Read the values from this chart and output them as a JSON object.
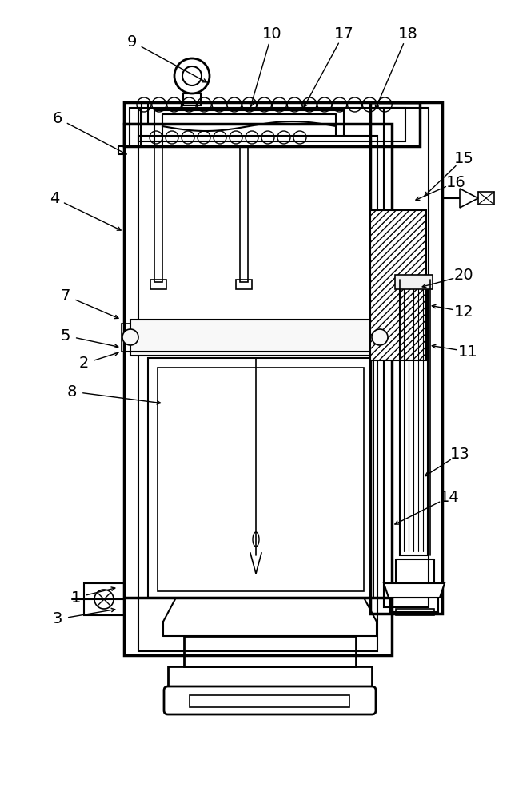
{
  "bg_color": "#ffffff",
  "lc": "#000000",
  "figsize": [
    6.54,
    10.0
  ],
  "dpi": 100,
  "annotations": [
    [
      "9",
      165,
      52,
      262,
      105
    ],
    [
      "10",
      340,
      42,
      312,
      138
    ],
    [
      "17",
      430,
      42,
      378,
      138
    ],
    [
      "18",
      510,
      42,
      468,
      140
    ],
    [
      "6",
      72,
      148,
      162,
      195
    ],
    [
      "4",
      68,
      248,
      155,
      290
    ],
    [
      "7",
      82,
      370,
      152,
      400
    ],
    [
      "5",
      82,
      420,
      152,
      435
    ],
    [
      "2",
      105,
      455,
      152,
      440
    ],
    [
      "8",
      90,
      490,
      205,
      505
    ],
    [
      "1",
      95,
      748,
      148,
      735
    ],
    [
      "3",
      72,
      775,
      148,
      762
    ],
    [
      "15",
      580,
      198,
      528,
      248
    ],
    [
      "16",
      570,
      228,
      516,
      252
    ],
    [
      "11",
      585,
      440,
      536,
      432
    ],
    [
      "12",
      580,
      390,
      536,
      382
    ],
    [
      "20",
      580,
      345,
      524,
      360
    ],
    [
      "13",
      575,
      568,
      528,
      598
    ],
    [
      "14",
      562,
      622,
      490,
      658
    ]
  ]
}
